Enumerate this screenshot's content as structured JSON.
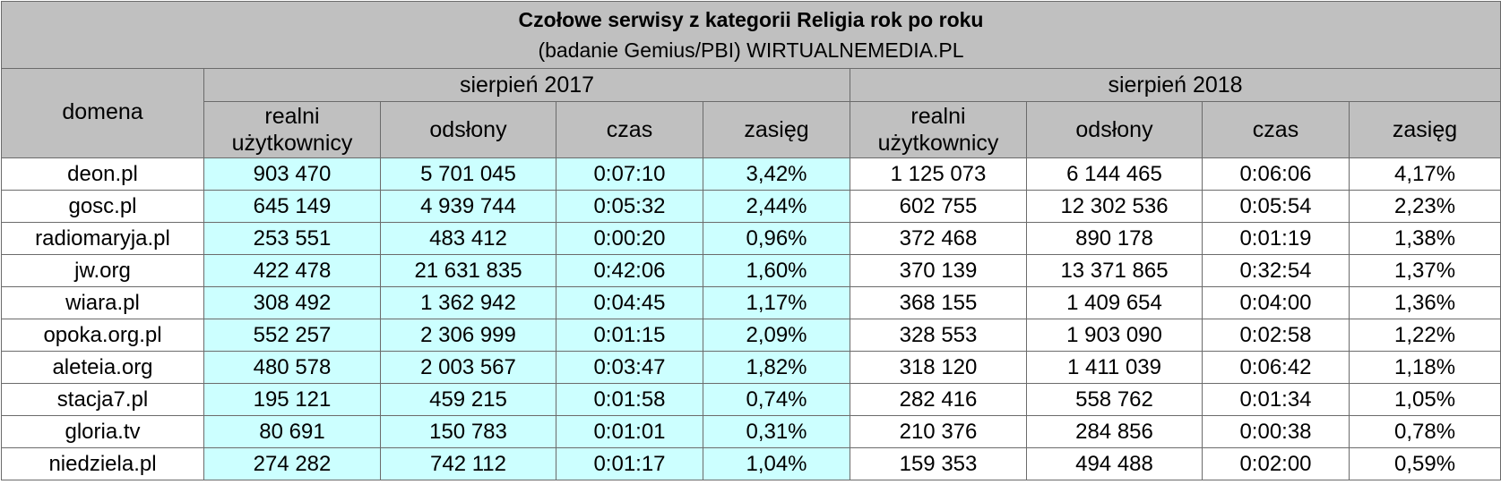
{
  "title": "Czołowe serwisy z kategorii Religia rok po roku",
  "subtitle": "(badanie Gemius/PBI) WIRTUALNEMEDIA.PL",
  "domain_header": "domena",
  "periods": [
    "sierpień 2017",
    "sierpień 2018"
  ],
  "metric_headers": [
    "realni użytkownicy",
    "odsłony",
    "czas",
    "zasięg"
  ],
  "colors": {
    "header_bg": "#c0c0c0",
    "highlight_2017": "#ccffff",
    "border": "#6b6b6b"
  },
  "chart_data": {
    "type": "table",
    "title": "Czołowe serwisy z kategorii Religia rok po roku",
    "subtitle": "(badanie Gemius/PBI) WIRTUALNEMEDIA.PL",
    "columns": [
      "domena",
      "realni użytkownicy",
      "odsłony",
      "czas",
      "zasięg",
      "realni użytkownicy",
      "odsłony",
      "czas",
      "zasięg"
    ],
    "rows": [
      [
        "deon.pl",
        "903 470",
        "5 701 045",
        "0:07:10",
        "3,42%",
        "1 125 073",
        "6 144 465",
        "0:06:06",
        "4,17%"
      ],
      [
        "gosc.pl",
        "645 149",
        "4 939 744",
        "0:05:32",
        "2,44%",
        "602 755",
        "12 302 536",
        "0:05:54",
        "2,23%"
      ],
      [
        "radiomaryja.pl",
        "253 551",
        "483 412",
        "0:00:20",
        "0,96%",
        "372 468",
        "890 178",
        "0:01:19",
        "1,38%"
      ],
      [
        "jw.org",
        "422 478",
        "21 631 835",
        "0:42:06",
        "1,60%",
        "370 139",
        "13 371 865",
        "0:32:54",
        "1,37%"
      ],
      [
        "wiara.pl",
        "308 492",
        "1 362 942",
        "0:04:45",
        "1,17%",
        "368 155",
        "1 409 654",
        "0:04:00",
        "1,36%"
      ],
      [
        "opoka.org.pl",
        "552 257",
        "2 306 999",
        "0:01:15",
        "2,09%",
        "328 553",
        "1 903 090",
        "0:02:58",
        "1,22%"
      ],
      [
        "aleteia.org",
        "480 578",
        "2 003 567",
        "0:03:47",
        "1,82%",
        "318 120",
        "1 411 039",
        "0:06:42",
        "1,18%"
      ],
      [
        "stacja7.pl",
        "195 121",
        "459 215",
        "0:01:58",
        "0,74%",
        "282 416",
        "558 762",
        "0:01:34",
        "1,05%"
      ],
      [
        "gloria.tv",
        "80 691",
        "150 783",
        "0:01:01",
        "0,31%",
        "210 376",
        "284 856",
        "0:00:38",
        "0,78%"
      ],
      [
        "niedziela.pl",
        "274 282",
        "742 112",
        "0:01:17",
        "1,04%",
        "159 353",
        "494 488",
        "0:02:00",
        "0,59%"
      ]
    ]
  }
}
